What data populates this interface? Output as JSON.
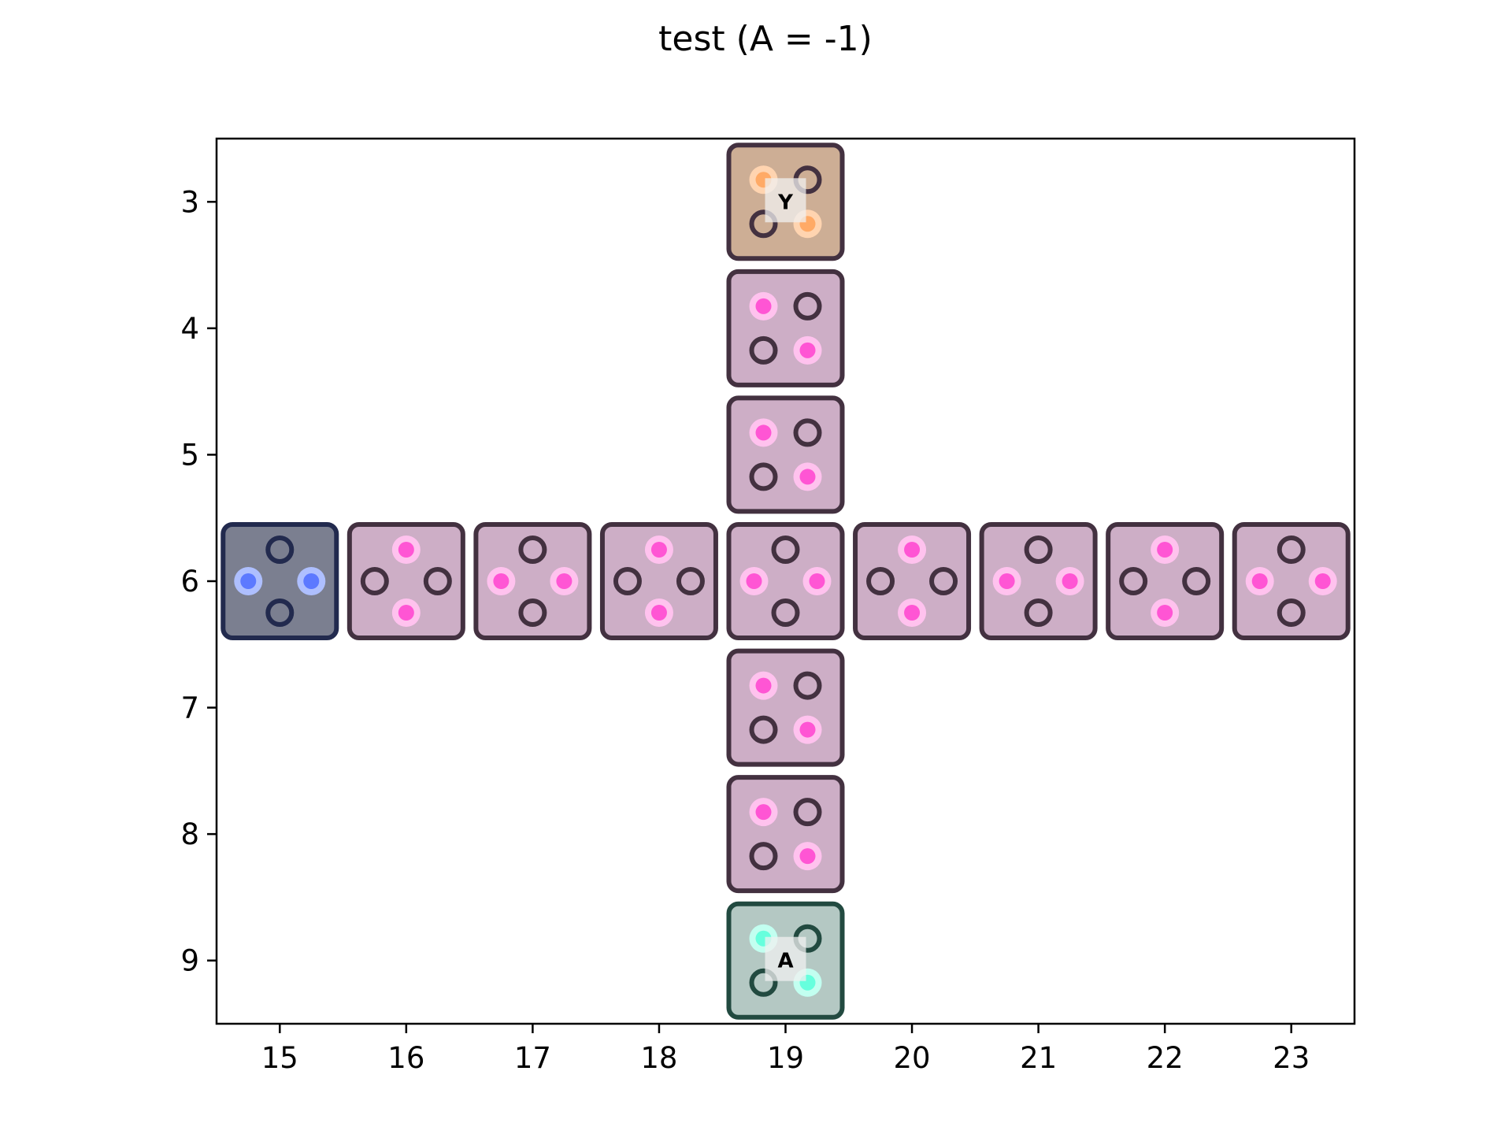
{
  "chart_data": {
    "type": "scatter",
    "title": "test (A = -1)",
    "xlabel": "",
    "ylabel": "",
    "xlim": [
      14.5,
      23.5
    ],
    "ylim": [
      9.5,
      2.5
    ],
    "y_inverted": true,
    "grid": false,
    "x_ticks": [
      "15",
      "16",
      "17",
      "18",
      "19",
      "20",
      "21",
      "22",
      "23"
    ],
    "y_ticks": [
      "3",
      "4",
      "5",
      "6",
      "7",
      "8",
      "9"
    ],
    "colors": {
      "pink_fill": "#cdaec6",
      "pink_edge": "#433140",
      "pink_dot": "#ff55d4",
      "pink_halo": "#ffc2ee",
      "orange_fill": "#cdae95",
      "orange_edge": "#433140",
      "orange_dot": "#ffaa66",
      "orange_halo": "#ffd4b0",
      "teal_fill": "#b4c8c3",
      "teal_edge": "#224a40",
      "teal_dot": "#66ffdd",
      "teal_halo": "#c2fff0",
      "blue_fill": "#7b7f90",
      "blue_edge": "#222a4e",
      "blue_dot": "#5c79ff",
      "blue_halo": "#aebfff",
      "hole": "#433140",
      "label_box": "#f0f0f0"
    },
    "cells": [
      {
        "x": 19,
        "y": 3,
        "color": "orange",
        "pattern": "diagonal",
        "label": "Y"
      },
      {
        "x": 19,
        "y": 4,
        "color": "pink",
        "pattern": "diagonal",
        "label": ""
      },
      {
        "x": 19,
        "y": 5,
        "color": "pink",
        "pattern": "diagonal",
        "label": ""
      },
      {
        "x": 15,
        "y": 6,
        "color": "blue",
        "pattern": "horizontal",
        "label": ""
      },
      {
        "x": 16,
        "y": 6,
        "color": "pink",
        "pattern": "vertical",
        "label": ""
      },
      {
        "x": 17,
        "y": 6,
        "color": "pink",
        "pattern": "horizontal",
        "label": ""
      },
      {
        "x": 18,
        "y": 6,
        "color": "pink",
        "pattern": "vertical",
        "label": ""
      },
      {
        "x": 19,
        "y": 6,
        "color": "pink",
        "pattern": "horizontal",
        "label": ""
      },
      {
        "x": 20,
        "y": 6,
        "color": "pink",
        "pattern": "vertical",
        "label": ""
      },
      {
        "x": 21,
        "y": 6,
        "color": "pink",
        "pattern": "horizontal",
        "label": ""
      },
      {
        "x": 22,
        "y": 6,
        "color": "pink",
        "pattern": "vertical",
        "label": ""
      },
      {
        "x": 23,
        "y": 6,
        "color": "pink",
        "pattern": "horizontal",
        "label": ""
      },
      {
        "x": 19,
        "y": 7,
        "color": "pink",
        "pattern": "diagonal",
        "label": ""
      },
      {
        "x": 19,
        "y": 8,
        "color": "pink",
        "pattern": "diagonal",
        "label": ""
      },
      {
        "x": 19,
        "y": 9,
        "color": "teal",
        "pattern": "diagonal",
        "label": "A"
      }
    ]
  }
}
